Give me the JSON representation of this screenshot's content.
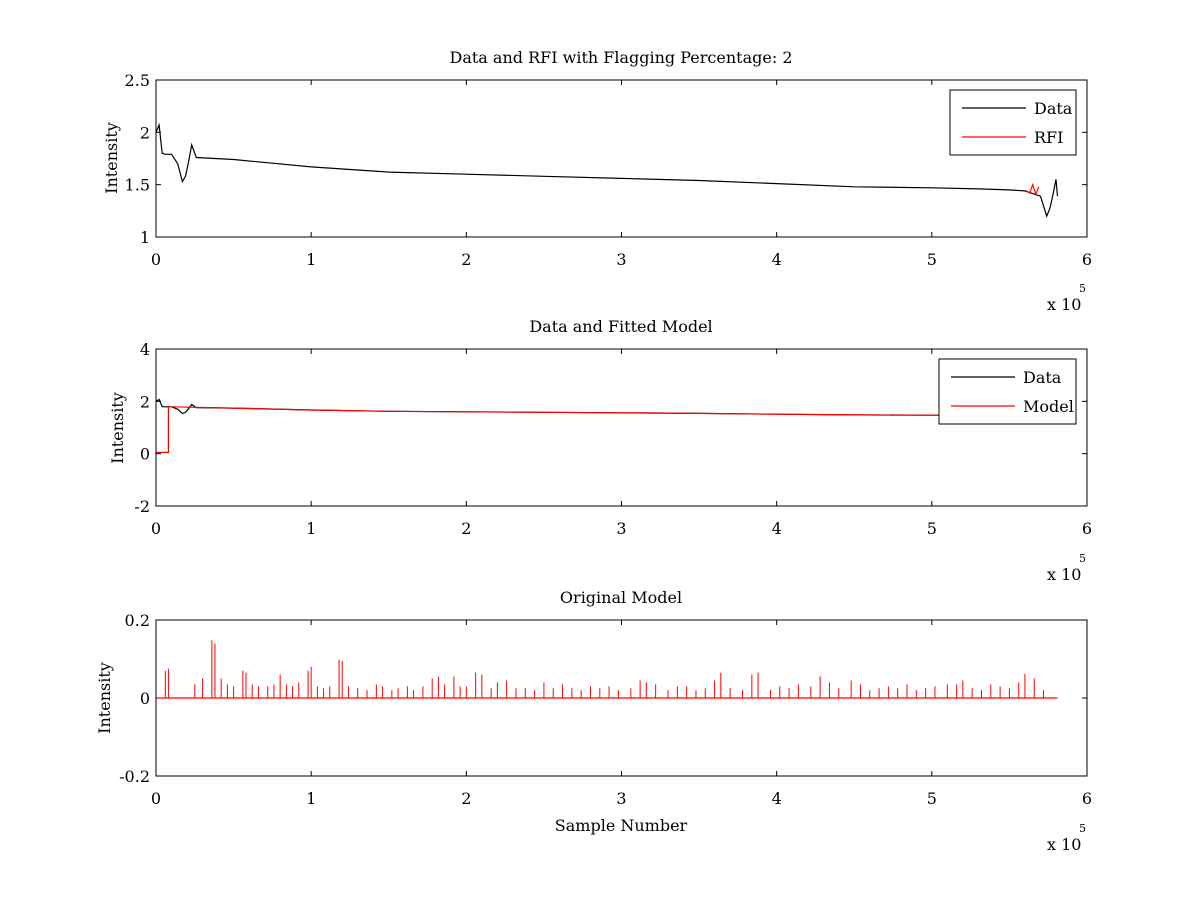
{
  "chart_data": [
    {
      "type": "line",
      "title": "Data and RFI with Flagging Percentage: 2",
      "xlabel": "",
      "ylabel": "Intensity",
      "xlim": [
        0,
        6
      ],
      "ylim": [
        1,
        2.5
      ],
      "x_ticks": [
        "0",
        "1",
        "2",
        "3",
        "4",
        "5",
        "6"
      ],
      "y_ticks": [
        "1",
        "1.5",
        "2",
        "2.5"
      ],
      "x_multiplier": {
        "base": "x 10",
        "exponent": "5"
      },
      "legend": {
        "position": "top-right",
        "entries": [
          "Data",
          "RFI"
        ]
      },
      "colors": {
        "Data": "#000000",
        "RFI": "#ff0000"
      },
      "series": [
        {
          "name": "Data",
          "x": [
            0,
            0.02,
            0.04,
            0.06,
            0.1,
            0.14,
            0.17,
            0.19,
            0.21,
            0.23,
            0.26,
            0.5,
            1.0,
            1.5,
            2.0,
            2.5,
            3.0,
            3.5,
            4.0,
            4.5,
            5.0,
            5.3,
            5.5,
            5.6,
            5.7,
            5.74,
            5.76,
            5.78,
            5.8,
            5.81
          ],
          "y": [
            2.0,
            2.07,
            1.8,
            1.79,
            1.79,
            1.7,
            1.53,
            1.58,
            1.72,
            1.88,
            1.76,
            1.74,
            1.67,
            1.62,
            1.6,
            1.58,
            1.56,
            1.54,
            1.51,
            1.48,
            1.47,
            1.46,
            1.45,
            1.44,
            1.39,
            1.2,
            1.27,
            1.4,
            1.55,
            1.39
          ]
        },
        {
          "name": "RFI",
          "x": [
            5.61,
            5.63,
            5.65,
            5.67,
            5.69
          ],
          "y": [
            1.44,
            1.42,
            1.5,
            1.41,
            1.48
          ]
        }
      ]
    },
    {
      "type": "line",
      "title": "Data and Fitted Model",
      "xlabel": "",
      "ylabel": "Intensity",
      "xlim": [
        0,
        6
      ],
      "ylim": [
        -2,
        4
      ],
      "x_ticks": [
        "0",
        "1",
        "2",
        "3",
        "4",
        "5",
        "6"
      ],
      "y_ticks": [
        "-2",
        "0",
        "2",
        "4"
      ],
      "x_multiplier": {
        "base": "x 10",
        "exponent": "5"
      },
      "legend": {
        "position": "top-right",
        "entries": [
          "Data",
          "Model"
        ]
      },
      "colors": {
        "Data": "#000000",
        "Model": "#ff0000"
      },
      "series": [
        {
          "name": "Data",
          "x": [
            0,
            0.02,
            0.04,
            0.06,
            0.1,
            0.14,
            0.17,
            0.19,
            0.21,
            0.23,
            0.26,
            0.5,
            1.0,
            1.5,
            2.0,
            2.5,
            3.0,
            3.5,
            4.0,
            4.5,
            5.0,
            5.05
          ],
          "y": [
            2.0,
            2.07,
            1.8,
            1.79,
            1.79,
            1.7,
            1.53,
            1.58,
            1.72,
            1.88,
            1.76,
            1.74,
            1.67,
            1.62,
            1.6,
            1.58,
            1.56,
            1.54,
            1.51,
            1.48,
            1.47,
            1.47
          ]
        },
        {
          "name": "Model",
          "x": [
            0,
            0.08,
            0.08,
            0.1,
            0.5,
            1.0,
            1.5,
            2.0,
            2.5,
            3.0,
            3.5,
            4.0,
            4.5,
            5.0,
            5.05
          ],
          "y": [
            0.05,
            0.05,
            1.79,
            1.79,
            1.74,
            1.67,
            1.62,
            1.6,
            1.58,
            1.56,
            1.54,
            1.51,
            1.48,
            1.47,
            1.47
          ]
        }
      ]
    },
    {
      "type": "line",
      "title": "Original Model",
      "xlabel": "Sample Number",
      "ylabel": "Intensity",
      "xlim": [
        0,
        6
      ],
      "ylim": [
        -0.2,
        0.2
      ],
      "x_ticks": [
        "0",
        "1",
        "2",
        "3",
        "4",
        "5",
        "6"
      ],
      "y_ticks": [
        "-0.2",
        "0",
        "0.2"
      ],
      "x_multiplier": {
        "base": "x 10",
        "exponent": "5"
      },
      "colors": {
        "Model": "#ff0000"
      },
      "baseline_range": [
        0,
        5.81
      ],
      "spikes": {
        "x": [
          0.06,
          0.08,
          0.25,
          0.3,
          0.36,
          0.38,
          0.42,
          0.46,
          0.5,
          0.56,
          0.58,
          0.62,
          0.66,
          0.72,
          0.76,
          0.8,
          0.84,
          0.88,
          0.92,
          0.98,
          1.0,
          1.04,
          1.08,
          1.12,
          1.18,
          1.2,
          1.24,
          1.3,
          1.36,
          1.42,
          1.46,
          1.52,
          1.56,
          1.62,
          1.66,
          1.72,
          1.78,
          1.82,
          1.86,
          1.92,
          1.96,
          2.0,
          2.06,
          2.1,
          2.16,
          2.2,
          2.26,
          2.32,
          2.38,
          2.44,
          2.5,
          2.56,
          2.62,
          2.68,
          2.74,
          2.8,
          2.86,
          2.92,
          2.98,
          3.06,
          3.12,
          3.16,
          3.22,
          3.3,
          3.36,
          3.42,
          3.48,
          3.54,
          3.6,
          3.64,
          3.7,
          3.78,
          3.84,
          3.88,
          3.96,
          4.02,
          4.08,
          4.14,
          4.22,
          4.28,
          4.34,
          4.4,
          4.48,
          4.54,
          4.6,
          4.66,
          4.72,
          4.78,
          4.84,
          4.9,
          4.96,
          5.02,
          5.1,
          5.16,
          5.2,
          5.26,
          5.32,
          5.38,
          5.44,
          5.5,
          5.56,
          5.6,
          5.66,
          5.72
        ],
        "y": [
          0.07,
          0.075,
          0.035,
          0.05,
          0.148,
          0.14,
          0.05,
          0.035,
          0.03,
          0.07,
          0.065,
          0.035,
          0.03,
          0.03,
          0.035,
          0.06,
          0.035,
          0.03,
          0.04,
          0.07,
          0.08,
          0.03,
          0.025,
          0.03,
          0.098,
          0.095,
          0.03,
          0.025,
          0.02,
          0.035,
          0.03,
          0.02,
          0.025,
          0.03,
          0.02,
          0.03,
          0.05,
          0.055,
          0.035,
          0.055,
          0.03,
          0.03,
          0.065,
          0.06,
          0.025,
          0.04,
          0.045,
          0.025,
          0.025,
          0.02,
          0.04,
          0.025,
          0.035,
          0.025,
          0.02,
          0.03,
          0.025,
          0.03,
          0.02,
          0.025,
          0.045,
          0.04,
          0.035,
          0.02,
          0.03,
          0.03,
          0.02,
          0.025,
          0.045,
          0.065,
          0.025,
          0.02,
          0.06,
          0.065,
          0.02,
          0.03,
          0.025,
          0.035,
          0.03,
          0.055,
          0.04,
          0.025,
          0.045,
          0.035,
          0.02,
          0.025,
          0.03,
          0.025,
          0.035,
          0.02,
          0.025,
          0.03,
          0.035,
          0.035,
          0.045,
          0.025,
          0.02,
          0.035,
          0.03,
          0.025,
          0.04,
          0.062,
          0.05,
          0.02
        ]
      }
    }
  ]
}
